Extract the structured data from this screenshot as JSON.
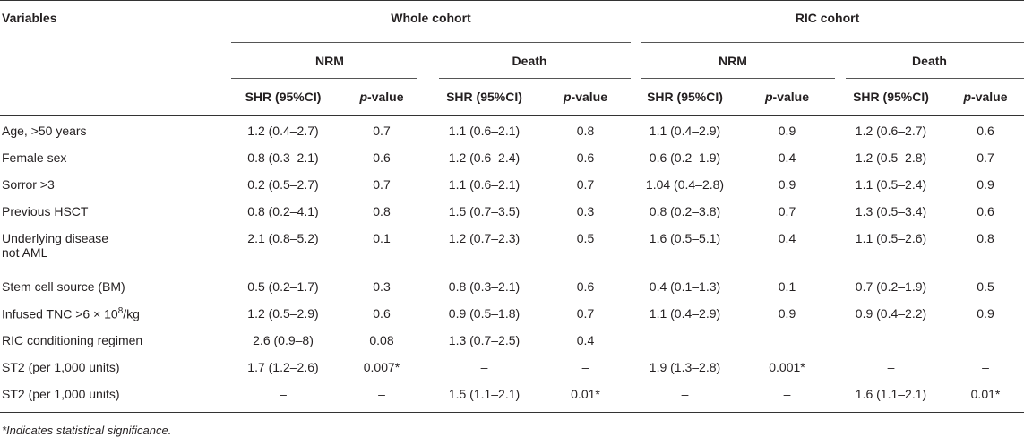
{
  "header": {
    "variables_label": "Variables",
    "whole_cohort": "Whole cohort",
    "ric_cohort": "RIC cohort",
    "nrm": "NRM",
    "death": "Death",
    "shr": "SHR (95%CI)",
    "p_italic": "p",
    "p_rest": "-value"
  },
  "rows": [
    {
      "label": [
        "Age, >50 years"
      ],
      "values": [
        "1.2 (0.4–2.7)",
        "0.7",
        "1.1 (0.6–2.1)",
        "0.8",
        "1.1 (0.4–2.9)",
        "0.9",
        "1.2 (0.6–2.7)",
        "0.6"
      ]
    },
    {
      "label": [
        "Female sex"
      ],
      "values": [
        "0.8 (0.3–2.1)",
        "0.6",
        "1.2 (0.6–2.4)",
        "0.6",
        "0.6 (0.2–1.9)",
        "0.4",
        "1.2 (0.5–2.8)",
        "0.7"
      ]
    },
    {
      "label": [
        "Sorror >3"
      ],
      "values": [
        "0.2 (0.5–2.7)",
        "0.7",
        "1.1 (0.6–2.1)",
        "0.7",
        "1.04 (0.4–2.8)",
        "0.9",
        "1.1 (0.5–2.4)",
        "0.9"
      ]
    },
    {
      "label": [
        "Previous HSCT"
      ],
      "values": [
        "0.8 (0.2–4.1)",
        "0.8",
        "1.5 (0.7–3.5)",
        "0.3",
        "0.8 (0.2–3.8)",
        "0.7",
        "1.3 (0.5–3.4)",
        "0.6"
      ]
    },
    {
      "label": [
        "Underlying disease",
        "not AML"
      ],
      "values": [
        "2.1 (0.8–5.2)",
        "0.1",
        "1.2 (0.7–2.3)",
        "0.5",
        "1.6 (0.5–5.1)",
        "0.4",
        "1.1 (0.5–2.6)",
        "0.8"
      ]
    },
    {
      "label": [
        "Stem cell source (BM)"
      ],
      "values": [
        "0.5 (0.2–1.7)",
        "0.3",
        "0.8 (0.3–2.1)",
        "0.6",
        "0.4 (0.1–1.3)",
        "0.1",
        "0.7 (0.2–1.9)",
        "0.5"
      ]
    },
    {
      "label": [
        "Infused TNC >6 × 10"
      ],
      "sup": "8",
      "label_tail": "/kg",
      "values": [
        "1.2 (0.5–2.9)",
        "0.6",
        "0.9 (0.5–1.8)",
        "0.7",
        "1.1 (0.4–2.9)",
        "0.9",
        "0.9 (0.4–2.2)",
        "0.9"
      ]
    },
    {
      "label": [
        "RIC conditioning regimen"
      ],
      "values": [
        "2.6 (0.9–8)",
        "0.08",
        "1.3 (0.7–2.5)",
        "0.4",
        "",
        "",
        "",
        ""
      ]
    },
    {
      "label": [
        "ST2 (per 1,000 units)"
      ],
      "values": [
        "1.7 (1.2–2.6)",
        "0.007*",
        "–",
        "–",
        "1.9 (1.3–2.8)",
        "0.001*",
        "–",
        "–"
      ]
    },
    {
      "label": [
        "ST2 (per 1,000 units)"
      ],
      "values": [
        "–",
        "–",
        "1.5 (1.1–2.1)",
        "0.01*",
        "–",
        "–",
        "1.6 (1.1–2.1)",
        "0.01*"
      ]
    }
  ],
  "footnote": "*Indicates statistical significance."
}
